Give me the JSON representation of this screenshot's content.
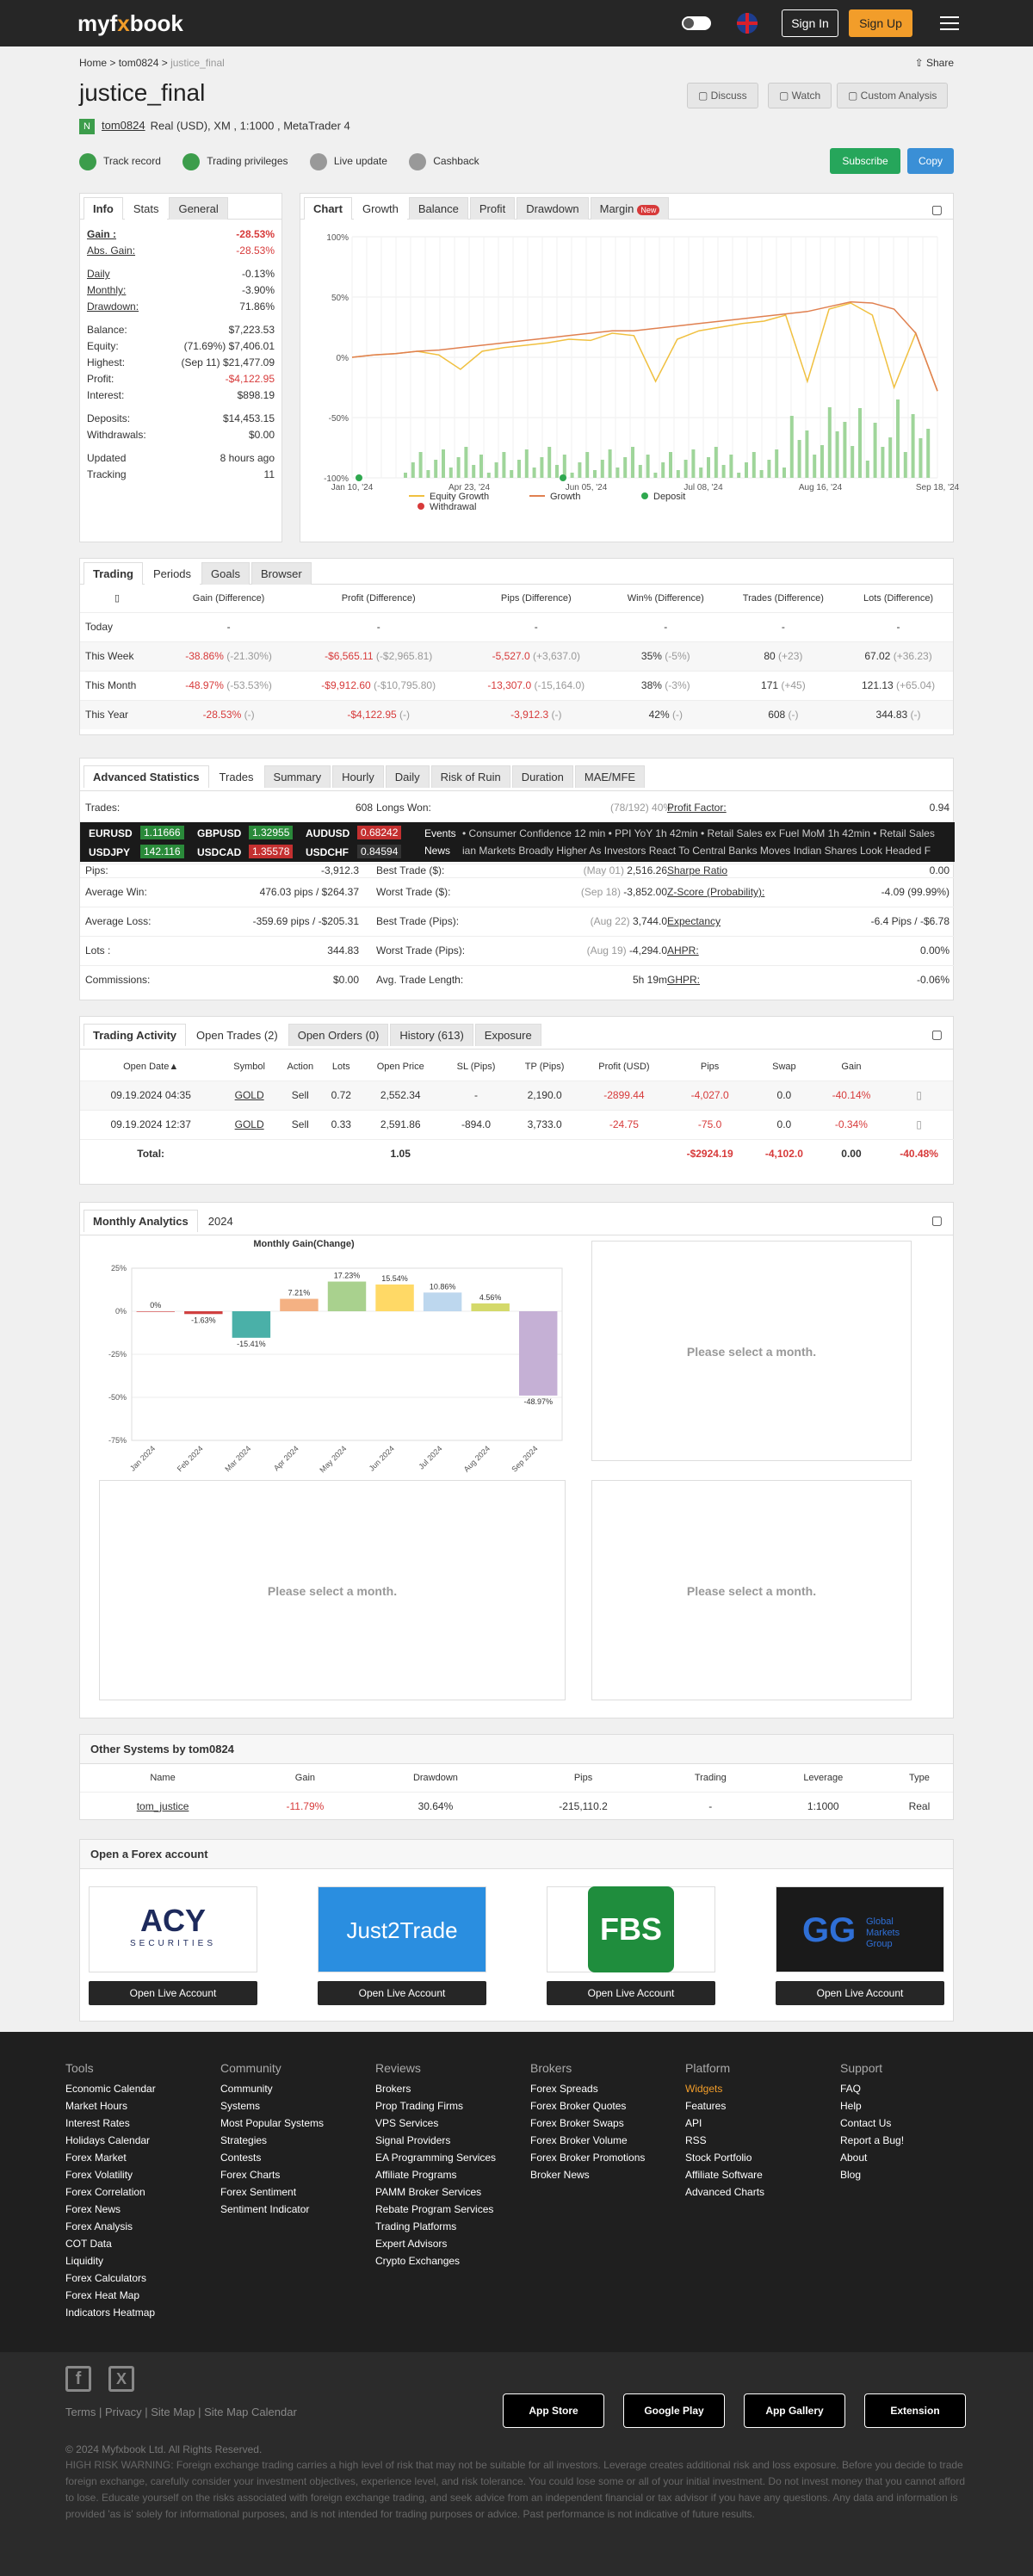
{
  "topbar": {
    "logo_a": "myf",
    "logo_b": "x",
    "logo_c": "book",
    "signin": "Sign In",
    "signup": "Sign Up"
  },
  "crumb": {
    "home": "Home",
    "user": "tom0824",
    "page": "justice_final",
    "share": "Share"
  },
  "title": "justice_final",
  "actions": {
    "discuss": "Discuss",
    "watch": "Watch",
    "custom": "Custom Analysis",
    "subscribe": "Subscribe",
    "copy": "Copy"
  },
  "meta": {
    "badge": "N",
    "user": "tom0824",
    "info": "Real (USD), XM , 1:1000 , MetaTrader 4"
  },
  "badges": [
    "Track record",
    "Trading privileges",
    "Live update",
    "Cashback"
  ],
  "info": {
    "tabs": [
      "Info",
      "Stats",
      "General"
    ],
    "rows": [
      {
        "k": "Gain :",
        "v": "-28.53%",
        "c": "red",
        "b": true
      },
      {
        "k": "Abs. Gain:",
        "v": "-28.53%",
        "c": "red"
      },
      {
        "k": "Daily",
        "v": "-0.13%"
      },
      {
        "k": "Monthly:",
        "v": "-3.90%"
      },
      {
        "k": "Drawdown:",
        "v": "71.86%"
      },
      {
        "k": "Balance:",
        "v": "$7,223.53"
      },
      {
        "k": "Equity:",
        "v": "(71.69%) $7,406.01"
      },
      {
        "k": "Highest:",
        "v": "(Sep 11) $21,477.09"
      },
      {
        "k": "Profit:",
        "v": "-$4,122.95",
        "c": "red"
      },
      {
        "k": "Interest:",
        "v": "$898.19"
      },
      {
        "k": "Deposits:",
        "v": "$14,453.15"
      },
      {
        "k": "Withdrawals:",
        "v": "$0.00"
      },
      {
        "k": "Updated",
        "v": "8 hours ago"
      },
      {
        "k": "Tracking",
        "v": "11"
      }
    ]
  },
  "chart": {
    "tabs": [
      "Chart",
      "Growth",
      "Balance",
      "Profit",
      "Drawdown",
      "Margin"
    ],
    "new": "New",
    "yticks": [
      "100%",
      "50%",
      "0%",
      "-50%",
      "-100%"
    ],
    "xticks": [
      "Jan 10, '24",
      "Apr 23, '24",
      "Jun 05, '24",
      "Jul 08, '24",
      "Aug 16, '24",
      "Sep 18, '24"
    ],
    "legend": [
      "Equity Growth",
      "Growth",
      "Deposit",
      "Withdrawal"
    ]
  },
  "chart_data": {
    "type": "line",
    "xlabel": "",
    "ylabel": "",
    "ylim": [
      -100,
      100
    ],
    "series": [
      {
        "name": "Equity Growth",
        "values": [
          0,
          2,
          3,
          5,
          2,
          -10,
          5,
          8,
          10,
          12,
          15,
          14,
          20,
          18,
          -20,
          15,
          22,
          25,
          28,
          30,
          35,
          -20,
          40,
          45,
          35,
          -25,
          20,
          -28
        ]
      },
      {
        "name": "Growth",
        "values": [
          0,
          2,
          3,
          5,
          6,
          8,
          10,
          12,
          14,
          16,
          18,
          20,
          22,
          22,
          24,
          26,
          28,
          30,
          32,
          34,
          36,
          38,
          42,
          46,
          45,
          40,
          20,
          -28
        ]
      }
    ]
  },
  "periods": {
    "tabs": [
      "Trading",
      "Periods",
      "Goals",
      "Browser"
    ],
    "headers": [
      "",
      "Gain (Difference)",
      "Profit (Difference)",
      "Pips (Difference)",
      "Win% (Difference)",
      "Trades (Difference)",
      "Lots (Difference)"
    ],
    "rows": [
      [
        "Today",
        "-",
        "-",
        "-",
        "-",
        "-",
        "-"
      ],
      [
        "This Week",
        "-38.86% (-21.30%)",
        "-$6,565.11 (-$2,965.81)",
        "-5,527.0 (+3,637.0)",
        "35% (-5%)",
        "80 (+23)",
        "67.02 (+36.23)"
      ],
      [
        "This Month",
        "-48.97% (-53.53%)",
        "-$9,912.60 (-$10,795.80)",
        "-13,307.0 (-15,164.0)",
        "38% (-3%)",
        "171 (+45)",
        "121.13 (+65.04)"
      ],
      [
        "This Year",
        "-28.53% (-)",
        "-$4,122.95 (-)",
        "-3,912.3 (-)",
        "42% (-)",
        "608 (-)",
        "344.83 (-)"
      ]
    ]
  },
  "adv": {
    "tabs": [
      "Advanced Statistics",
      "Trades",
      "Summary",
      "Hourly",
      "Daily",
      "Risk of Ruin",
      "Duration",
      "MAE/MFE"
    ],
    "top": {
      "trades_k": "Trades:",
      "trades_v": "608",
      "longs_k": "Longs Won:",
      "longs_v": "(78/192) 40%",
      "pf_k": "Profit Factor:",
      "pf_v": "0.94"
    },
    "rows": [
      [
        "Pips:",
        "-3,912.3",
        "Best Trade ($):",
        "(May 01) 2,516.26",
        "Sharpe Ratio",
        "0.00"
      ],
      [
        "Average Win:",
        "476.03 pips / $264.37",
        "Worst Trade ($):",
        "(Sep 18) -3,852.00",
        "Z-Score (Probability):",
        "-4.09 (99.99%)"
      ],
      [
        "Average Loss:",
        "-359.69 pips / -$205.31",
        "Best Trade (Pips):",
        "(Aug 22) 3,744.0",
        "Expectancy",
        "-6.4 Pips / -$6.78"
      ],
      [
        "Lots :",
        "344.83",
        "Worst Trade (Pips):",
        "(Aug 19) -4,294.0",
        "AHPR:",
        "0.00%"
      ],
      [
        "Commissions:",
        "$0.00",
        "Avg. Trade Length:",
        "5h 19m",
        "GHPR:",
        "-0.06%"
      ]
    ],
    "ticker": [
      {
        "s": "EURUSD",
        "v": "1.11666",
        "c": "#2a8a3a"
      },
      {
        "s": "GBPUSD",
        "v": "1.32955",
        "c": "#2a8a3a"
      },
      {
        "s": "AUDUSD",
        "v": "0.68242",
        "c": "#c43030"
      },
      {
        "s": "USDJPY",
        "v": "142.116",
        "c": "#2a8a3a"
      },
      {
        "s": "USDCAD",
        "v": "1.35578",
        "c": "#c43030"
      },
      {
        "s": "USDCHF",
        "v": "0.84594",
        "c": "#333"
      }
    ],
    "events_label": "Events",
    "news_label": "News",
    "events": "• Consumer Confidence  12 min  • PPI YoY  1h 42min  • Retail Sales ex Fuel MoM  1h 42min  • Retail Sales",
    "news": "ian Markets Broadly Higher As Investors React To Central Banks Moves     Indian Shares Look Headed F"
  },
  "activity": {
    "tabs": [
      "Trading Activity",
      "Open Trades (2)",
      "Open Orders (0)",
      "History (613)",
      "Exposure"
    ],
    "headers": [
      "Open Date▲",
      "Symbol",
      "Action",
      "Lots",
      "Open Price",
      "SL (Pips)",
      "TP (Pips)",
      "Profit (USD)",
      "Pips",
      "Swap",
      "Gain"
    ],
    "rows": [
      [
        "09.19.2024 04:35",
        "GOLD",
        "Sell",
        "0.72",
        "2,552.34",
        "-",
        "2,190.0",
        "-2899.44",
        "-4,027.0",
        "0.0",
        "-40.14%"
      ],
      [
        "09.19.2024 12:37",
        "GOLD",
        "Sell",
        "0.33",
        "2,591.86",
        "-894.0",
        "3,733.0",
        "-24.75",
        "-75.0",
        "0.0",
        "-0.34%"
      ]
    ],
    "total": {
      "label": "Total:",
      "lots": "1.05",
      "profit": "-$2924.19",
      "pips": "-4,102.0",
      "swap": "0.00",
      "gain": "-40.48%"
    }
  },
  "monthly": {
    "tabs": [
      "Monthly Analytics",
      "2024"
    ],
    "chart_title": "Monthly Gain(Change)",
    "select": "Please select a month.",
    "yticks": [
      "25%",
      "0%",
      "-25%",
      "-50%",
      "-75%"
    ],
    "months": [
      "Jan 2024",
      "Feb 2024",
      "Mar 2024",
      "Apr 2024",
      "May 2024",
      "Jun 2024",
      "Jul 2024",
      "Aug 2024",
      "Sep 2024"
    ],
    "values": [
      0,
      -1.63,
      -15.41,
      7.21,
      17.23,
      15.54,
      10.86,
      4.56,
      -48.97
    ],
    "labels": [
      "0%",
      "-1.63%",
      "-15.41%",
      "7.21%",
      "17.23%",
      "15.54%",
      "10.86%",
      "4.56%",
      "-48.97%"
    ],
    "colors": [
      "#e08080",
      "#d04040",
      "#4ab0a8",
      "#f4b183",
      "#a9d18e",
      "#ffd966",
      "#bdd7ee",
      "#d4d96a",
      "#c5b0d5"
    ]
  },
  "others": {
    "title": "Other Systems by tom0824",
    "headers": [
      "Name",
      "Gain",
      "Drawdown",
      "Pips",
      "Trading",
      "Leverage",
      "Type"
    ],
    "row": [
      "tom_justice",
      "-11.79%",
      "30.64%",
      "-215,110.2",
      "-",
      "1:1000",
      "Real"
    ]
  },
  "forex": {
    "title": "Open a Forex account",
    "open": "Open Live Account",
    "brokers": [
      "ACY SECURITIES",
      "Just2Trade",
      "FBS",
      "Global Markets Group"
    ]
  },
  "footer": {
    "cols": [
      {
        "h": "Tools",
        "items": [
          "Economic Calendar",
          "Market Hours",
          "Interest Rates",
          "Holidays Calendar",
          "Forex Market",
          "Forex Volatility",
          "Forex Correlation",
          "Forex News",
          "Forex Analysis",
          "COT Data",
          "Liquidity",
          "Forex Calculators",
          "Forex Heat Map",
          "Indicators Heatmap"
        ]
      },
      {
        "h": "Community",
        "items": [
          "Community",
          "Systems",
          "Most Popular Systems",
          "Strategies",
          "Contests",
          "Forex Charts",
          "Forex Sentiment",
          "Sentiment Indicator"
        ]
      },
      {
        "h": "Reviews",
        "items": [
          "Brokers",
          "Prop Trading Firms",
          "VPS Services",
          "Signal Providers",
          "EA Programming Services",
          "Affiliate Programs",
          "PAMM Broker Services",
          "Rebate Program Services",
          "Trading Platforms",
          "Expert Advisors",
          "Crypto Exchanges"
        ]
      },
      {
        "h": "Brokers",
        "items": [
          "Forex Spreads",
          "Forex Broker Quotes",
          "Forex Broker Swaps",
          "Forex Broker Volume",
          "Forex Broker Promotions",
          "Broker News"
        ]
      },
      {
        "h": "Platform",
        "items": [
          "Widgets",
          "Features",
          "API",
          "RSS",
          "Stock Portfolio",
          "Affiliate Software",
          "Advanced Charts"
        ]
      },
      {
        "h": "Support",
        "items": [
          "FAQ",
          "Help",
          "Contact Us",
          "Report a Bug!",
          "About",
          "Blog"
        ]
      }
    ],
    "links": "Terms | Privacy | Site Map | Site Map Calendar",
    "stores": [
      "App Store",
      "Google Play",
      "App Gallery",
      "Extension"
    ],
    "copyright": "© 2024 Myfxbook Ltd. All Rights Reserved.",
    "warning": "HIGH RISK WARNING: Foreign exchange trading carries a high level of risk that may not be suitable for all investors. Leverage creates additional risk and loss exposure. Before you decide to trade foreign exchange, carefully consider your investment objectives, experience level, and risk tolerance. You could lose some or all of your initial investment. Do not invest money that you cannot afford to lose. Educate yourself on the risks associated with foreign exchange trading, and seek advice from an independent financial or tax advisor if you have any questions. Any data and information is provided 'as is' solely for informational purposes, and is not intended for trading purposes or advice. Past performance is not indicative of future results."
  }
}
